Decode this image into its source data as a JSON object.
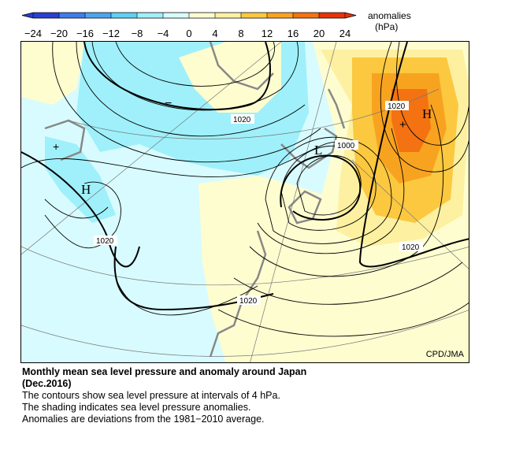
{
  "colorbar": {
    "tick_labels": [
      "−24",
      "−20",
      "−16",
      "−12",
      "−8",
      "−4",
      "0",
      "4",
      "8",
      "12",
      "16",
      "20",
      "24"
    ],
    "unit_label_line1": "anomalies",
    "unit_label_line2": "(hPa)",
    "colors": [
      "#2a3fd1",
      "#3f7de8",
      "#4aa6f0",
      "#5fd0f5",
      "#9ff0fa",
      "#d8fbff",
      "#fefdd0",
      "#fdf0a0",
      "#fbc840",
      "#f8a320",
      "#f47212",
      "#e8320a"
    ]
  },
  "map": {
    "contour_labels": [
      "1020",
      "1020",
      "1000",
      "1020",
      "1020",
      "1020"
    ],
    "pressure_symbols": {
      "high_east": "H",
      "high_west": "H",
      "low": "L"
    },
    "anomaly_symbols": {
      "plus_east": "+",
      "plus_west": "+",
      "minus": "−"
    },
    "credit": "CPD/JMA"
  },
  "caption": {
    "title_line1": "Monthly mean sea level pressure and anomaly around Japan",
    "title_line2": "(Dec.2016)",
    "line3": "The contours show sea level pressure at intervals of 4 hPa.",
    "line4": "The shading indicates sea level pressure anomalies.",
    "line5": "Anomalies are deviations from the 1981−2010 average."
  }
}
